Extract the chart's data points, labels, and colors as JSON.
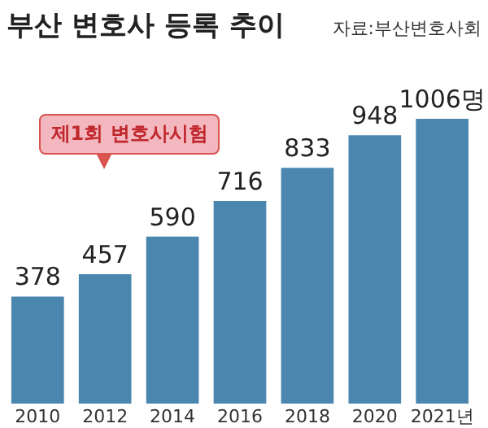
{
  "chart_data": {
    "type": "bar",
    "title": "부산 변호사 등록 추이",
    "categories": [
      "2010",
      "2012",
      "2014",
      "2016",
      "2018",
      "2020",
      "2021년"
    ],
    "values": [
      378,
      457,
      590,
      716,
      833,
      948,
      1006
    ],
    "value_labels": [
      "378",
      "457",
      "590",
      "716",
      "833",
      "948",
      "1006명"
    ],
    "color": "#4a86ae",
    "annotations": [
      "자료:부산변호사회",
      "제1회 변호사시험"
    ]
  }
}
